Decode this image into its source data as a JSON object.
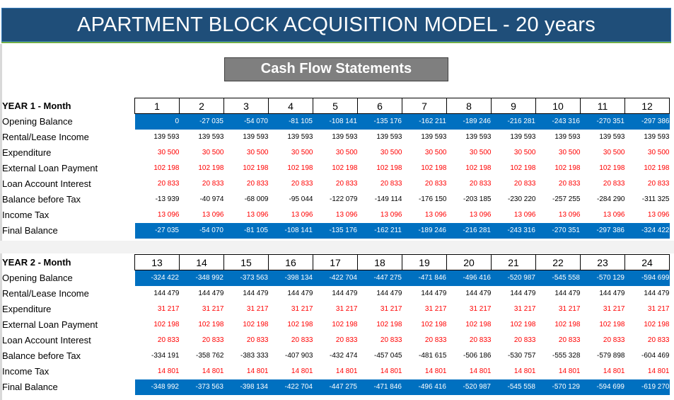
{
  "title": "APARTMENT BLOCK ACQUISITION MODEL - 20 years",
  "subtitle": "Cash Flow Statements",
  "years": [
    {
      "header_label": "YEAR 1 - Month",
      "months": [
        "1",
        "2",
        "3",
        "4",
        "5",
        "6",
        "7",
        "8",
        "9",
        "10",
        "11",
        "12"
      ],
      "rows": [
        {
          "label": "Opening Balance",
          "style": "blue",
          "values": [
            "0",
            "-27 035",
            "-54 070",
            "-81 105",
            "-108 141",
            "-135 176",
            "-162 211",
            "-189 246",
            "-216 281",
            "-243 316",
            "-270 351",
            "-297 386"
          ]
        },
        {
          "label": "Rental/Lease Income",
          "style": "black",
          "values": [
            "139 593",
            "139 593",
            "139 593",
            "139 593",
            "139 593",
            "139 593",
            "139 593",
            "139 593",
            "139 593",
            "139 593",
            "139 593",
            "139 593"
          ]
        },
        {
          "label": "Expenditure",
          "style": "red",
          "values": [
            "30 500",
            "30 500",
            "30 500",
            "30 500",
            "30 500",
            "30 500",
            "30 500",
            "30 500",
            "30 500",
            "30 500",
            "30 500",
            "30 500"
          ]
        },
        {
          "label": "External Loan Payment",
          "style": "red",
          "values": [
            "102 198",
            "102 198",
            "102 198",
            "102 198",
            "102 198",
            "102 198",
            "102 198",
            "102 198",
            "102 198",
            "102 198",
            "102 198",
            "102 198"
          ]
        },
        {
          "label": "Loan Account Interest",
          "style": "red",
          "values": [
            "20 833",
            "20 833",
            "20 833",
            "20 833",
            "20 833",
            "20 833",
            "20 833",
            "20 833",
            "20 833",
            "20 833",
            "20 833",
            "20 833"
          ]
        },
        {
          "label": "Balance before Tax",
          "style": "black",
          "values": [
            "-13 939",
            "-40 974",
            "-68 009",
            "-95 044",
            "-122 079",
            "-149 114",
            "-176 150",
            "-203 185",
            "-230 220",
            "-257 255",
            "-284 290",
            "-311 325"
          ]
        },
        {
          "label": "Income Tax",
          "style": "red",
          "values": [
            "13 096",
            "13 096",
            "13 096",
            "13 096",
            "13 096",
            "13 096",
            "13 096",
            "13 096",
            "13 096",
            "13 096",
            "13 096",
            "13 096"
          ]
        },
        {
          "label": "Final Balance",
          "style": "blue",
          "values": [
            "-27 035",
            "-54 070",
            "-81 105",
            "-108 141",
            "-135 176",
            "-162 211",
            "-189 246",
            "-216 281",
            "-243 316",
            "-270 351",
            "-297 386",
            "-324 422"
          ]
        }
      ]
    },
    {
      "header_label": "YEAR 2 - Month",
      "months": [
        "13",
        "14",
        "15",
        "16",
        "17",
        "18",
        "19",
        "20",
        "21",
        "22",
        "23",
        "24"
      ],
      "rows": [
        {
          "label": "Opening Balance",
          "style": "blue",
          "values": [
            "-324 422",
            "-348 992",
            "-373 563",
            "-398 134",
            "-422 704",
            "-447 275",
            "-471 846",
            "-496 416",
            "-520 987",
            "-545 558",
            "-570 129",
            "-594 699"
          ]
        },
        {
          "label": "Rental/Lease Income",
          "style": "black",
          "values": [
            "144 479",
            "144 479",
            "144 479",
            "144 479",
            "144 479",
            "144 479",
            "144 479",
            "144 479",
            "144 479",
            "144 479",
            "144 479",
            "144 479"
          ]
        },
        {
          "label": "Expenditure",
          "style": "red",
          "values": [
            "31 217",
            "31 217",
            "31 217",
            "31 217",
            "31 217",
            "31 217",
            "31 217",
            "31 217",
            "31 217",
            "31 217",
            "31 217",
            "31 217"
          ]
        },
        {
          "label": "External Loan Payment",
          "style": "red",
          "values": [
            "102 198",
            "102 198",
            "102 198",
            "102 198",
            "102 198",
            "102 198",
            "102 198",
            "102 198",
            "102 198",
            "102 198",
            "102 198",
            "102 198"
          ]
        },
        {
          "label": "Loan Account Interest",
          "style": "red",
          "values": [
            "20 833",
            "20 833",
            "20 833",
            "20 833",
            "20 833",
            "20 833",
            "20 833",
            "20 833",
            "20 833",
            "20 833",
            "20 833",
            "20 833"
          ]
        },
        {
          "label": "Balance before Tax",
          "style": "black",
          "values": [
            "-334 191",
            "-358 762",
            "-383 333",
            "-407 903",
            "-432 474",
            "-457 045",
            "-481 615",
            "-506 186",
            "-530 757",
            "-555 328",
            "-579 898",
            "-604 469"
          ]
        },
        {
          "label": "Income Tax",
          "style": "red",
          "values": [
            "14 801",
            "14 801",
            "14 801",
            "14 801",
            "14 801",
            "14 801",
            "14 801",
            "14 801",
            "14 801",
            "14 801",
            "14 801",
            "14 801"
          ]
        },
        {
          "label": "Final Balance",
          "style": "blue",
          "values": [
            "-348 992",
            "-373 563",
            "-398 134",
            "-422 704",
            "-447 275",
            "-471 846",
            "-496 416",
            "-520 987",
            "-545 558",
            "-570 129",
            "-594 699",
            "-619 270"
          ]
        }
      ]
    }
  ]
}
